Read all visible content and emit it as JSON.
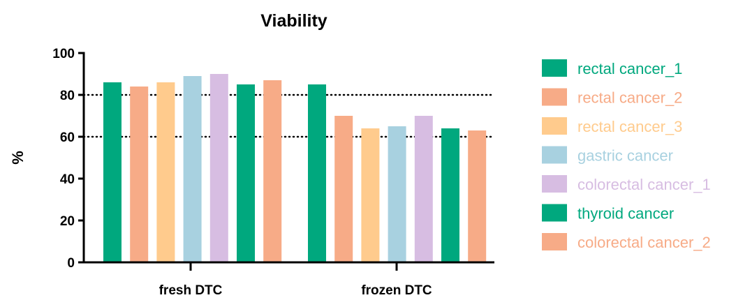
{
  "chart_data": {
    "type": "bar",
    "title": "Viability",
    "xlabel": "",
    "ylabel": "%",
    "ylim": [
      0,
      100
    ],
    "yticks": [
      0,
      20,
      40,
      60,
      80,
      100
    ],
    "reference_lines": [
      60,
      80
    ],
    "categories": [
      "fresh DTC",
      "frozen DTC"
    ],
    "series": [
      {
        "name": "rectal cancer_1",
        "color": "#00A87E",
        "values": [
          86,
          85
        ]
      },
      {
        "name": "rectal cancer_2",
        "color": "#F7AB87",
        "values": [
          84,
          70
        ]
      },
      {
        "name": "rectal cancer_3",
        "color": "#FFCB8D",
        "values": [
          86,
          64
        ]
      },
      {
        "name": "gastric cancer",
        "color": "#A8D1E0",
        "values": [
          89,
          65
        ]
      },
      {
        "name": "colorectal cancer_1",
        "color": "#D7BDE2",
        "values": [
          90,
          70
        ]
      },
      {
        "name": "thyroid cancer",
        "color": "#00A87E",
        "values": [
          85,
          64
        ]
      },
      {
        "name": "colorectal cancer_2",
        "color": "#F7AB87",
        "values": [
          87,
          63
        ]
      }
    ],
    "legend_position": "right",
    "grid": false
  }
}
